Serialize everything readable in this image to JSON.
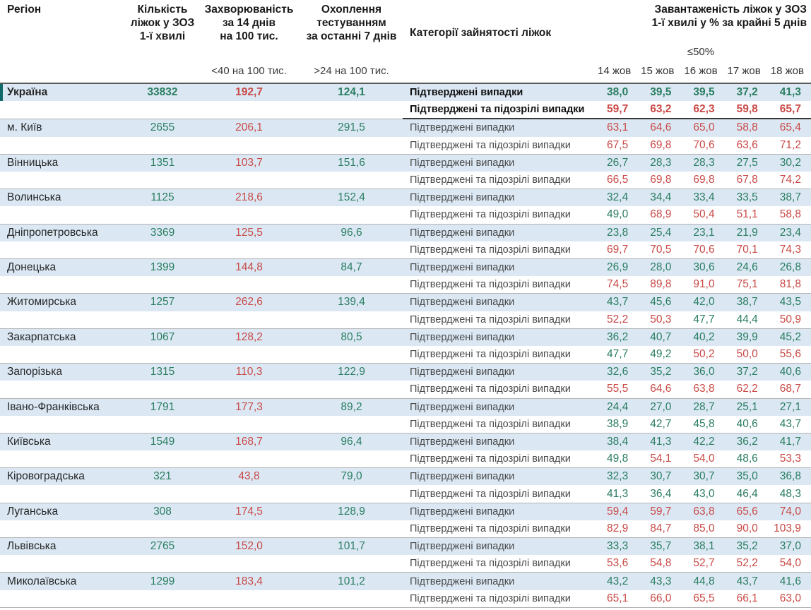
{
  "header": {
    "col_region": "Регіон",
    "col_beds": "Кількість\nліжок у ЗОЗ\n1-ї хвилі",
    "col_incidence": "Захворюваність\nза 14 днів\nна 100 тис.",
    "col_testing": "Охоплення\nтестуванням\nза останні 7 днів",
    "col_category": "Категорії зайнятості ліжок",
    "col_load": "Завантаженість ліжок у ЗОЗ\n1-ї хвилі у % за крайні 5 днів",
    "incidence_threshold_label": "<40 на 100 тис.",
    "testing_threshold_label": ">24 на 100 тис.",
    "load_threshold_label": "≤50%",
    "dates": [
      "14 жов",
      "15 жов",
      "16 жов",
      "17 жов",
      "18 жов"
    ]
  },
  "category_labels": {
    "confirmed": "Підтверджені випадки",
    "suspected": "Підтверджені та підозрілі випадки"
  },
  "colors": {
    "good": "#2a7d60",
    "bad": "#c94946",
    "row_highlight": "#dbe8f4",
    "ukraine_marker": "#116a69"
  },
  "thresholds": {
    "load_red_at": 50,
    "incidence_red_at": 40,
    "testing_green_above": 24
  },
  "rows": [
    {
      "region": "Україна",
      "emphasize": true,
      "beds": "33832",
      "incidence": "192,7",
      "testing": "124,1",
      "confirmed": [
        "38,0",
        "39,5",
        "39,5",
        "37,2",
        "41,3"
      ],
      "suspected": [
        "59,7",
        "63,2",
        "62,3",
        "59,8",
        "65,7"
      ]
    },
    {
      "region": "м. Київ",
      "emphasize": false,
      "beds": "2655",
      "incidence": "206,1",
      "testing": "291,5",
      "confirmed": [
        "63,1",
        "64,6",
        "65,0",
        "58,8",
        "65,4"
      ],
      "suspected": [
        "67,5",
        "69,8",
        "70,6",
        "63,6",
        "71,2"
      ]
    },
    {
      "region": "Вінницька",
      "emphasize": false,
      "beds": "1351",
      "incidence": "103,7",
      "testing": "151,6",
      "confirmed": [
        "26,7",
        "28,3",
        "28,3",
        "27,5",
        "30,2"
      ],
      "suspected": [
        "66,5",
        "69,8",
        "69,8",
        "67,8",
        "74,2"
      ]
    },
    {
      "region": "Волинська",
      "emphasize": false,
      "beds": "1125",
      "incidence": "218,6",
      "testing": "152,4",
      "confirmed": [
        "32,4",
        "34,4",
        "33,4",
        "33,5",
        "38,7"
      ],
      "suspected": [
        "49,0",
        "68,9",
        "50,4",
        "51,1",
        "58,8"
      ]
    },
    {
      "region": "Дніпропетровська",
      "emphasize": false,
      "beds": "3369",
      "incidence": "125,5",
      "testing": "96,6",
      "confirmed": [
        "23,8",
        "25,4",
        "23,1",
        "21,9",
        "23,4"
      ],
      "suspected": [
        "69,7",
        "70,5",
        "70,6",
        "70,1",
        "74,3"
      ]
    },
    {
      "region": "Донецька",
      "emphasize": false,
      "beds": "1399",
      "incidence": "144,8",
      "testing": "84,7",
      "confirmed": [
        "26,9",
        "28,0",
        "30,6",
        "24,6",
        "26,8"
      ],
      "suspected": [
        "74,5",
        "89,8",
        "91,0",
        "75,1",
        "81,8"
      ]
    },
    {
      "region": "Житомирська",
      "emphasize": false,
      "beds": "1257",
      "incidence": "262,6",
      "testing": "139,4",
      "confirmed": [
        "43,7",
        "45,6",
        "42,0",
        "38,7",
        "43,5"
      ],
      "suspected": [
        "52,2",
        "50,3",
        "47,7",
        "44,4",
        "50,9"
      ]
    },
    {
      "region": "Закарпатська",
      "emphasize": false,
      "beds": "1067",
      "incidence": "128,2",
      "testing": "80,5",
      "confirmed": [
        "36,2",
        "40,7",
        "40,2",
        "39,9",
        "45,2"
      ],
      "suspected": [
        "47,7",
        "49,2",
        "50,2",
        "50,0",
        "55,6"
      ]
    },
    {
      "region": "Запорізька",
      "emphasize": false,
      "beds": "1315",
      "incidence": "110,3",
      "testing": "122,9",
      "confirmed": [
        "32,6",
        "35,2",
        "36,0",
        "37,2",
        "40,6"
      ],
      "suspected": [
        "55,5",
        "64,6",
        "63,8",
        "62,2",
        "68,7"
      ]
    },
    {
      "region": "Івано-Франківська",
      "emphasize": false,
      "beds": "1791",
      "incidence": "177,3",
      "testing": "89,2",
      "confirmed": [
        "24,4",
        "27,0",
        "28,7",
        "25,1",
        "27,1"
      ],
      "suspected": [
        "38,9",
        "42,7",
        "45,8",
        "40,6",
        "43,7"
      ]
    },
    {
      "region": "Київська",
      "emphasize": false,
      "beds": "1549",
      "incidence": "168,7",
      "testing": "96,4",
      "confirmed": [
        "38,4",
        "41,3",
        "42,2",
        "36,2",
        "41,7"
      ],
      "suspected": [
        "49,8",
        "54,1",
        "54,0",
        "48,6",
        "53,3"
      ]
    },
    {
      "region": "Кіровоградська",
      "emphasize": false,
      "beds": "321",
      "incidence": "43,8",
      "testing": "79,0",
      "confirmed": [
        "32,3",
        "30,7",
        "30,7",
        "35,0",
        "36,8"
      ],
      "suspected": [
        "41,3",
        "36,4",
        "43,0",
        "46,4",
        "48,3"
      ]
    },
    {
      "region": "Луганська",
      "emphasize": false,
      "beds": "308",
      "incidence": "174,5",
      "testing": "128,9",
      "confirmed": [
        "59,4",
        "59,7",
        "63,8",
        "65,6",
        "74,0"
      ],
      "suspected": [
        "82,9",
        "84,7",
        "85,0",
        "90,0",
        "103,9"
      ]
    },
    {
      "region": "Львівська",
      "emphasize": false,
      "beds": "2765",
      "incidence": "152,0",
      "testing": "101,7",
      "confirmed": [
        "33,3",
        "35,7",
        "38,1",
        "35,2",
        "37,0"
      ],
      "suspected": [
        "53,6",
        "54,8",
        "52,7",
        "52,2",
        "54,0"
      ]
    },
    {
      "region": "Миколаївська",
      "emphasize": false,
      "beds": "1299",
      "incidence": "183,4",
      "testing": "101,2",
      "confirmed": [
        "43,2",
        "43,3",
        "44,8",
        "43,7",
        "41,6"
      ],
      "suspected": [
        "65,1",
        "66,0",
        "65,5",
        "66,1",
        "63,0"
      ]
    }
  ]
}
